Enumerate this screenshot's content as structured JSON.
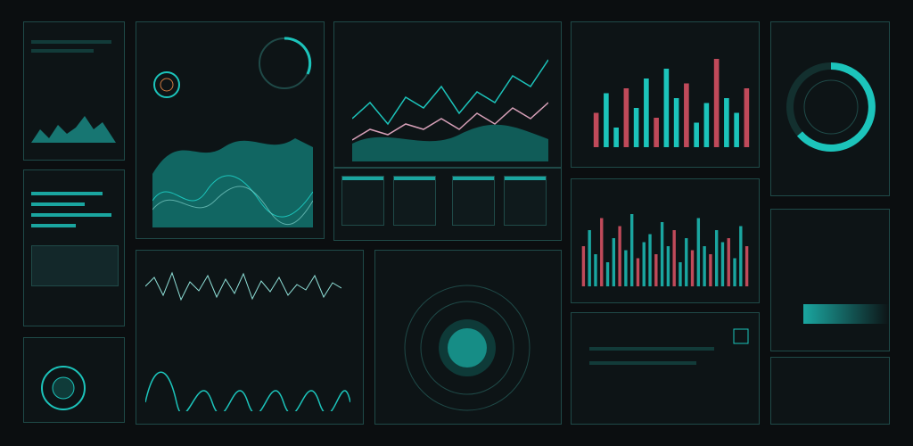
{
  "colors": {
    "accent": "#1cc4bb",
    "accent_dark": "#0e5f5b",
    "bg": "#0b0e10",
    "panel_border": "#1f4a48",
    "red": "#c04a5a",
    "pink": "#d7a0b8"
  },
  "panels": {
    "p1": {
      "title": "",
      "caption": ""
    },
    "p2": {
      "title": ""
    },
    "p3": {
      "title": ""
    },
    "p4": {
      "title": ""
    },
    "p5": {
      "title": ""
    },
    "p6": {
      "title": ""
    },
    "p7": {
      "title": ""
    },
    "p8": {
      "title": ""
    },
    "p9": {
      "title": ""
    },
    "p10": {
      "title": ""
    },
    "p11": {
      "title": ""
    },
    "p12": {
      "title": ""
    },
    "p13": {
      "title": ""
    }
  },
  "icons": [
    "radar-icon",
    "gauge-icon",
    "globe-icon",
    "chip-icon"
  ],
  "chart_data": [
    {
      "type": "bar",
      "series": [
        {
          "values": [
            0.35,
            0.55,
            0.2,
            0.6,
            0.4,
            0.7,
            0.3,
            0.8,
            0.5,
            0.65,
            0.25,
            0.45,
            0.9,
            0.5,
            0.35,
            0.6
          ]
        }
      ]
    },
    {
      "type": "bar",
      "series": [
        {
          "values": [
            0.5,
            0.7,
            0.4,
            0.85,
            0.3,
            0.6,
            0.75,
            0.45,
            0.9,
            0.35,
            0.55,
            0.65,
            0.4,
            0.8,
            0.5,
            0.7,
            0.3,
            0.6,
            0.45,
            0.85,
            0.5,
            0.4,
            0.7,
            0.55,
            0.6,
            0.35,
            0.75,
            0.5
          ]
        }
      ]
    },
    {
      "type": "line",
      "series": [
        {
          "values": [
            0.4,
            0.55,
            0.35,
            0.6,
            0.5,
            0.7,
            0.45,
            0.65,
            0.55,
            0.8,
            0.7,
            0.95
          ]
        },
        {
          "values": [
            0.2,
            0.3,
            0.25,
            0.35,
            0.3,
            0.4,
            0.3,
            0.45,
            0.35,
            0.5,
            0.4,
            0.55
          ]
        }
      ]
    }
  ]
}
